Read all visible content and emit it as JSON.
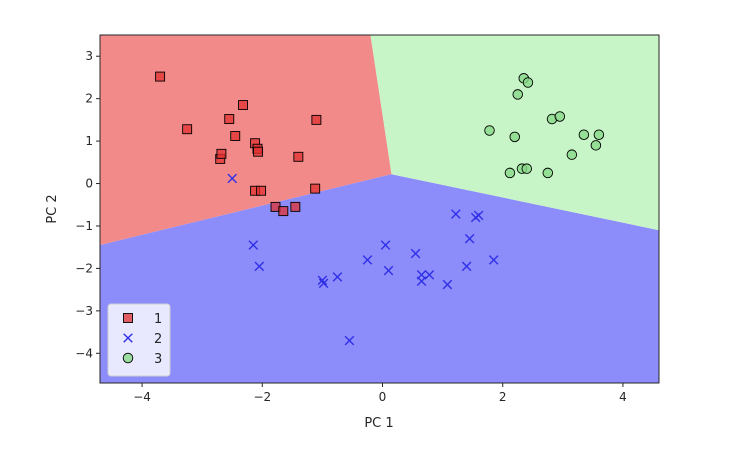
{
  "chart_data": {
    "type": "scatter",
    "title": "",
    "xlabel": "PC 1",
    "ylabel": "PC 2",
    "xlim": [
      -4.7,
      4.6
    ],
    "ylim": [
      -4.7,
      3.5
    ],
    "xticks": [
      -4,
      -2,
      0,
      2,
      4
    ],
    "yticks": [
      3,
      2,
      1,
      0,
      -1,
      -2,
      -3,
      -4
    ],
    "xtick_labels": [
      "−4",
      "−2",
      "0",
      "2",
      "4"
    ],
    "ytick_labels": [
      "3",
      "2",
      "1",
      "0",
      "−1",
      "−2",
      "−3",
      "−4"
    ],
    "grid": false,
    "legend_position": "lower-left",
    "decision_regions": [
      {
        "class": "1",
        "color": "#f28a8a",
        "polygon": [
          [
            -4.7,
            3.5
          ],
          [
            -0.2,
            3.5
          ],
          [
            0.15,
            0.22
          ],
          [
            -4.7,
            -1.45
          ]
        ]
      },
      {
        "class": "2",
        "color": "#8c8cfb",
        "polygon": [
          [
            -4.7,
            -1.45
          ],
          [
            0.15,
            0.22
          ],
          [
            4.6,
            -1.1
          ],
          [
            4.6,
            -4.7
          ],
          [
            -4.7,
            -4.7
          ]
        ]
      },
      {
        "class": "3",
        "color": "#c8f5c8",
        "polygon": [
          [
            -0.2,
            3.5
          ],
          [
            4.6,
            3.5
          ],
          [
            4.6,
            -1.1
          ],
          [
            0.15,
            0.22
          ]
        ]
      }
    ],
    "series": [
      {
        "name": "1",
        "marker": "square",
        "color": "#e03030",
        "points": [
          [
            -3.7,
            2.52
          ],
          [
            -3.25,
            1.28
          ],
          [
            -2.7,
            0.58
          ],
          [
            -2.68,
            0.7
          ],
          [
            -2.55,
            1.52
          ],
          [
            -2.45,
            1.12
          ],
          [
            -2.32,
            1.85
          ],
          [
            -2.12,
            0.95
          ],
          [
            -2.08,
            0.82
          ],
          [
            -2.07,
            0.75
          ],
          [
            -2.12,
            -0.17
          ],
          [
            -2.02,
            -0.17
          ],
          [
            -1.78,
            -0.55
          ],
          [
            -1.65,
            -0.65
          ],
          [
            -1.45,
            -0.55
          ],
          [
            -1.4,
            0.63
          ],
          [
            -1.1,
            1.5
          ],
          [
            -1.12,
            -0.12
          ]
        ]
      },
      {
        "name": "2",
        "marker": "x",
        "color": "#3030e8",
        "points": [
          [
            -2.5,
            0.12
          ],
          [
            -2.15,
            -1.45
          ],
          [
            -2.05,
            -1.95
          ],
          [
            -1.0,
            -2.28
          ],
          [
            -0.98,
            -2.35
          ],
          [
            -0.75,
            -2.2
          ],
          [
            -0.55,
            -3.7
          ],
          [
            -0.25,
            -1.8
          ],
          [
            0.05,
            -1.45
          ],
          [
            0.1,
            -2.05
          ],
          [
            0.55,
            -1.65
          ],
          [
            0.65,
            -2.15
          ],
          [
            0.65,
            -2.3
          ],
          [
            0.78,
            -2.15
          ],
          [
            1.08,
            -2.38
          ],
          [
            1.22,
            -0.72
          ],
          [
            1.4,
            -1.95
          ],
          [
            1.45,
            -1.3
          ],
          [
            1.55,
            -0.8
          ],
          [
            1.6,
            -0.75
          ],
          [
            1.85,
            -1.8
          ]
        ]
      },
      {
        "name": "3",
        "marker": "circle",
        "color": "#88d888",
        "points": [
          [
            1.78,
            1.25
          ],
          [
            2.12,
            0.25
          ],
          [
            2.2,
            1.1
          ],
          [
            2.25,
            2.1
          ],
          [
            2.32,
            0.35
          ],
          [
            2.35,
            2.48
          ],
          [
            2.4,
            0.35
          ],
          [
            2.42,
            2.38
          ],
          [
            2.75,
            0.25
          ],
          [
            2.82,
            1.52
          ],
          [
            2.95,
            1.58
          ],
          [
            3.15,
            0.68
          ],
          [
            3.35,
            1.15
          ],
          [
            3.55,
            0.9
          ],
          [
            3.6,
            1.15
          ]
        ]
      }
    ],
    "legend": [
      {
        "label": "1",
        "marker": "square",
        "color": "#e03030"
      },
      {
        "label": "2",
        "marker": "x",
        "color": "#3030e8"
      },
      {
        "label": "3",
        "marker": "circle",
        "color": "#88d888"
      }
    ]
  }
}
